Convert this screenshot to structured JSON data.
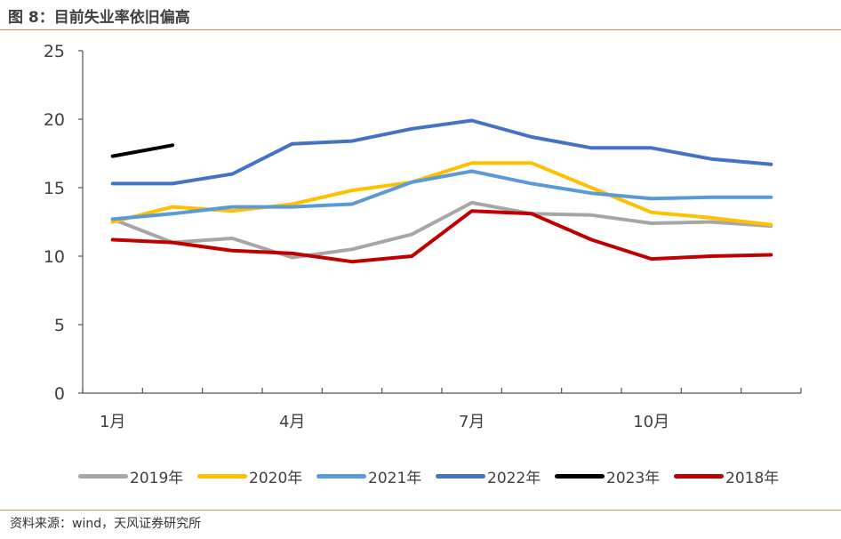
{
  "title": "图 8：目前失业率依旧偏高",
  "source": "资料来源：wind，天风证券研究所",
  "chart_data": {
    "type": "line",
    "categories": [
      "1",
      "2",
      "3",
      "4",
      "5",
      "6",
      "7",
      "8",
      "9",
      "10",
      "11",
      "12"
    ],
    "x_tick_labels": [
      {
        "index": 0,
        "label": "1月"
      },
      {
        "index": 3,
        "label": "4月"
      },
      {
        "index": 6,
        "label": "7月"
      },
      {
        "index": 9,
        "label": "10月"
      }
    ],
    "y_ticks": [
      "0",
      "5",
      "10",
      "15",
      "20",
      "25"
    ],
    "ylim": [
      0,
      25
    ],
    "grid": false,
    "legend_position": "bottom",
    "series": [
      {
        "name": "2019年",
        "color": "#a6a6a6",
        "values": [
          12.7,
          11.0,
          11.3,
          9.9,
          10.5,
          11.6,
          13.9,
          13.1,
          13.0,
          12.4,
          12.5,
          12.2
        ]
      },
      {
        "name": "2020年",
        "color": "#ffc000",
        "values": [
          12.5,
          13.6,
          13.3,
          13.8,
          14.8,
          15.4,
          16.8,
          16.8,
          15.0,
          13.2,
          12.8,
          12.3
        ]
      },
      {
        "name": "2021年",
        "color": "#5b9bd5",
        "values": [
          12.7,
          13.1,
          13.6,
          13.6,
          13.8,
          15.4,
          16.2,
          15.3,
          14.6,
          14.2,
          14.3,
          14.3
        ]
      },
      {
        "name": "2022年",
        "color": "#4472c4",
        "values": [
          15.3,
          15.3,
          16.0,
          18.2,
          18.4,
          19.3,
          19.9,
          18.7,
          17.9,
          17.9,
          17.1,
          16.7
        ]
      },
      {
        "name": "2023年",
        "color": "#000000",
        "values": [
          17.3,
          18.1,
          null,
          null,
          null,
          null,
          null,
          null,
          null,
          null,
          null,
          null
        ]
      },
      {
        "name": "2018年",
        "color": "#c00000",
        "values": [
          11.2,
          11.0,
          10.4,
          10.2,
          9.6,
          10.0,
          13.3,
          13.1,
          11.2,
          9.8,
          10.0,
          10.1
        ]
      }
    ]
  }
}
